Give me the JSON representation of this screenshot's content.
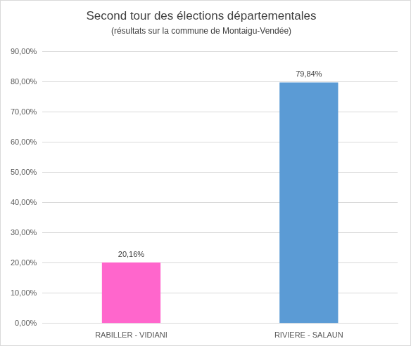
{
  "chart_data": {
    "type": "bar",
    "title": "Second tour des élections départementales",
    "subtitle": "(résultats sur la commune de Montaigu-Vendée)",
    "categories": [
      "RABILLER - VIDIANI",
      "RIVIERE - SALAUN"
    ],
    "values": [
      20.16,
      79.84
    ],
    "value_labels": [
      "20,16%",
      "79,84%"
    ],
    "colors": [
      "#ff66cc",
      "#5b9bd5"
    ],
    "data_labels": true,
    "ylim": [
      0,
      90
    ],
    "yticks": [
      {
        "value": 0,
        "label": "0,00%"
      },
      {
        "value": 10,
        "label": "10,00%"
      },
      {
        "value": 20,
        "label": "20,00%"
      },
      {
        "value": 30,
        "label": "30,00%"
      },
      {
        "value": 40,
        "label": "40,00%"
      },
      {
        "value": 50,
        "label": "50,00%"
      },
      {
        "value": 60,
        "label": "60,00%"
      },
      {
        "value": 70,
        "label": "70,00%"
      },
      {
        "value": 80,
        "label": "80,00%"
      },
      {
        "value": 90,
        "label": "90,00%"
      }
    ],
    "grid": true
  }
}
